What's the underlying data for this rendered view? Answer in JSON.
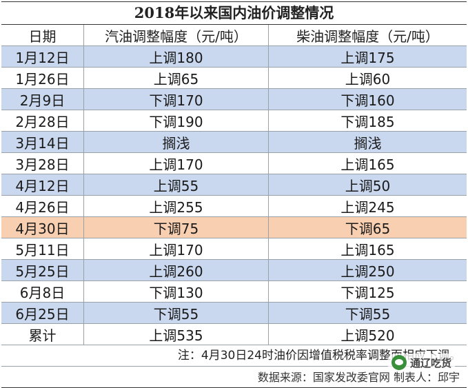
{
  "title": "2018年以来国内油价调整情况",
  "headers": [
    "日期",
    "汽油调整幅度（元/吨）",
    "柴油调整幅度（元/吨）"
  ],
  "rows": [
    {
      "date": "1月12日",
      "gasoline": "上调180",
      "diesel": "上调175",
      "style": "blue"
    },
    {
      "date": "1月26日",
      "gasoline": "上调65",
      "diesel": "上调60",
      "style": "white"
    },
    {
      "date": "2月9日",
      "gasoline": "下调170",
      "diesel": "下调160",
      "style": "blue"
    },
    {
      "date": "2月28日",
      "gasoline": "下调190",
      "diesel": "下调185",
      "style": "white"
    },
    {
      "date": "3月14日",
      "gasoline": "搁浅",
      "diesel": "搁浅",
      "style": "blue"
    },
    {
      "date": "3月28日",
      "gasoline": "上调170",
      "diesel": "上调165",
      "style": "white"
    },
    {
      "date": "4月12日",
      "gasoline": "上调55",
      "diesel": "上调50",
      "style": "blue"
    },
    {
      "date": "4月26日",
      "gasoline": "上调255",
      "diesel": "上调245",
      "style": "white"
    },
    {
      "date": "4月30日",
      "gasoline": "下调75",
      "diesel": "下调65",
      "style": "orange"
    },
    {
      "date": "5月11日",
      "gasoline": "上调170",
      "diesel": "上调165",
      "style": "white"
    },
    {
      "date": "5月25日",
      "gasoline": "上调260",
      "diesel": "上调250",
      "style": "blue"
    },
    {
      "date": "6月8日",
      "gasoline": "下调130",
      "diesel": "下调125",
      "style": "white"
    },
    {
      "date": "6月25日",
      "gasoline": "下调55",
      "diesel": "下调55",
      "style": "blue"
    },
    {
      "date": "累计",
      "gasoline": "上调535",
      "diesel": "上调520",
      "style": "white"
    }
  ],
  "note": "注：4月30日24时油价因增值税税率调整而相应下调。",
  "source": "数据来源：国家发改委官网  制表人：邱宇",
  "watermark": "通辽吃货"
}
